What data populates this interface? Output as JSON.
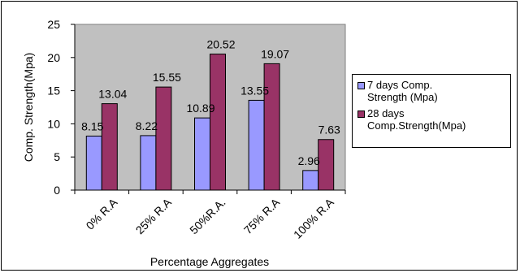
{
  "chart_data": {
    "type": "bar",
    "title": "",
    "xlabel": "Percentage Aggregates",
    "ylabel": "Comp. Strength(Mpa)",
    "ylim": [
      0,
      25
    ],
    "yticks": [
      "0",
      "5",
      "10",
      "15",
      "20",
      "25"
    ],
    "categories": [
      "0% R.A",
      "25% R.A",
      "50%R.A.",
      "75% R.A",
      "100% R.A"
    ],
    "series": [
      {
        "name": "7 days Comp. Strength (Mpa)",
        "values": [
          8.15,
          8.22,
          10.89,
          13.55,
          2.96
        ],
        "labels": [
          "8.15",
          "8.22",
          "10.89",
          "13.55",
          "2.96"
        ],
        "color": "#9999ff"
      },
      {
        "name": "28 days Comp.Strength(Mpa)",
        "values": [
          13.04,
          15.55,
          20.52,
          19.07,
          7.63
        ],
        "labels": [
          "13.04",
          "15.55",
          "20.52",
          "19.07",
          "7.63"
        ],
        "color": "#993366"
      }
    ],
    "legend_lines": [
      [
        "7 days Comp.",
        "Strength (Mpa)"
      ],
      [
        "28 days",
        "Comp.Strength(Mpa)"
      ]
    ],
    "plot_background": "#c0c0c0",
    "grid": false,
    "legend_position": "right"
  }
}
